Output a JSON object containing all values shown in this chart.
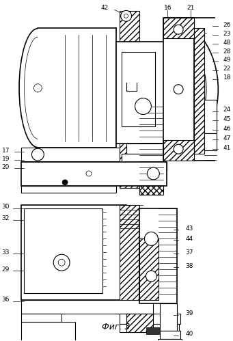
{
  "title": "Фиг. 3",
  "fig_width": 3.41,
  "fig_height": 4.99,
  "dpi": 100
}
